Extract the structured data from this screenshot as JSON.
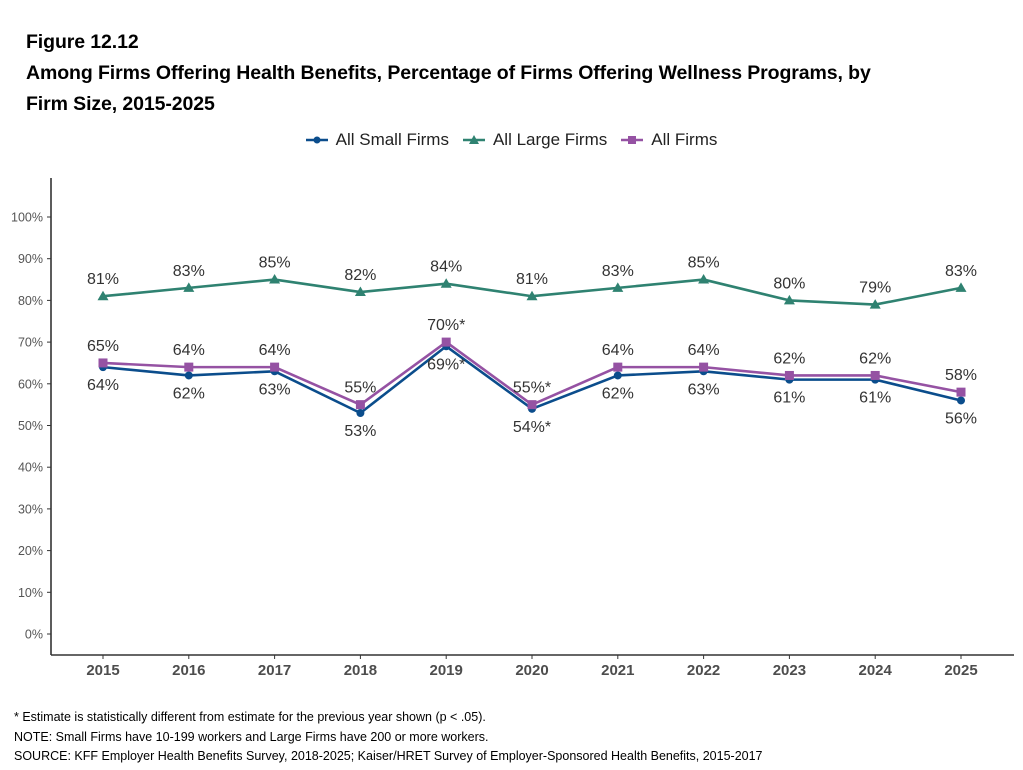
{
  "header": {
    "figure_label": "Figure 12.12",
    "title_line1": "Among Firms Offering Health Benefits, Percentage of Firms Offering Wellness Programs, by",
    "title_line2": "Firm Size, 2015-2025"
  },
  "footer": {
    "asterisk_note": "* Estimate is statistically different from estimate for the previous year shown (p < .05).",
    "note": "NOTE: Small Firms have 10-199 workers and Large Firms have 200 or more workers.",
    "source": "SOURCE: KFF Employer Health Benefits Survey, 2018-2025; Kaiser/HRET Survey of Employer-Sponsored Health Benefits, 2015-2017"
  },
  "chart_data": {
    "type": "line",
    "title": "Among Firms Offering Health Benefits, Percentage of Firms Offering Wellness Programs, by Firm Size, 2015-2025",
    "xlabel": "",
    "ylabel": "",
    "x": [
      "2015",
      "2016",
      "2017",
      "2018",
      "2019",
      "2020",
      "2021",
      "2022",
      "2023",
      "2024",
      "2025"
    ],
    "ylim": [
      0,
      100
    ],
    "yticks": [
      0,
      10,
      20,
      30,
      40,
      50,
      60,
      70,
      80,
      90,
      100
    ],
    "ytick_labels": [
      "0%",
      "10%",
      "20%",
      "30%",
      "40%",
      "50%",
      "60%",
      "70%",
      "80%",
      "90%",
      "100%"
    ],
    "grid": false,
    "legend_position": "top",
    "series": [
      {
        "name": "All Small Firms",
        "color": "#0B4D8C",
        "marker": "circle",
        "label_position": "below",
        "values": [
          64,
          62,
          63,
          53,
          69,
          54,
          62,
          63,
          61,
          61,
          56
        ],
        "labels": [
          "64%",
          "62%",
          "63%",
          "53%",
          "69%*",
          "54%*",
          "62%",
          "63%",
          "61%",
          "61%",
          "56%"
        ]
      },
      {
        "name": "All Large Firms",
        "color": "#2F8271",
        "marker": "triangle",
        "label_position": "above",
        "values": [
          81,
          83,
          85,
          82,
          84,
          81,
          83,
          85,
          80,
          79,
          83
        ],
        "labels": [
          "81%",
          "83%",
          "85%",
          "82%",
          "84%",
          "81%",
          "83%",
          "85%",
          "80%",
          "79%",
          "83%"
        ]
      },
      {
        "name": "All Firms",
        "color": "#9552A3",
        "marker": "square",
        "label_position": "above",
        "values": [
          65,
          64,
          64,
          55,
          70,
          55,
          64,
          64,
          62,
          62,
          58
        ],
        "labels": [
          "65%",
          "64%",
          "64%",
          "55%",
          "70%*",
          "55%*",
          "64%",
          "64%",
          "62%",
          "62%",
          "58%"
        ]
      }
    ]
  }
}
